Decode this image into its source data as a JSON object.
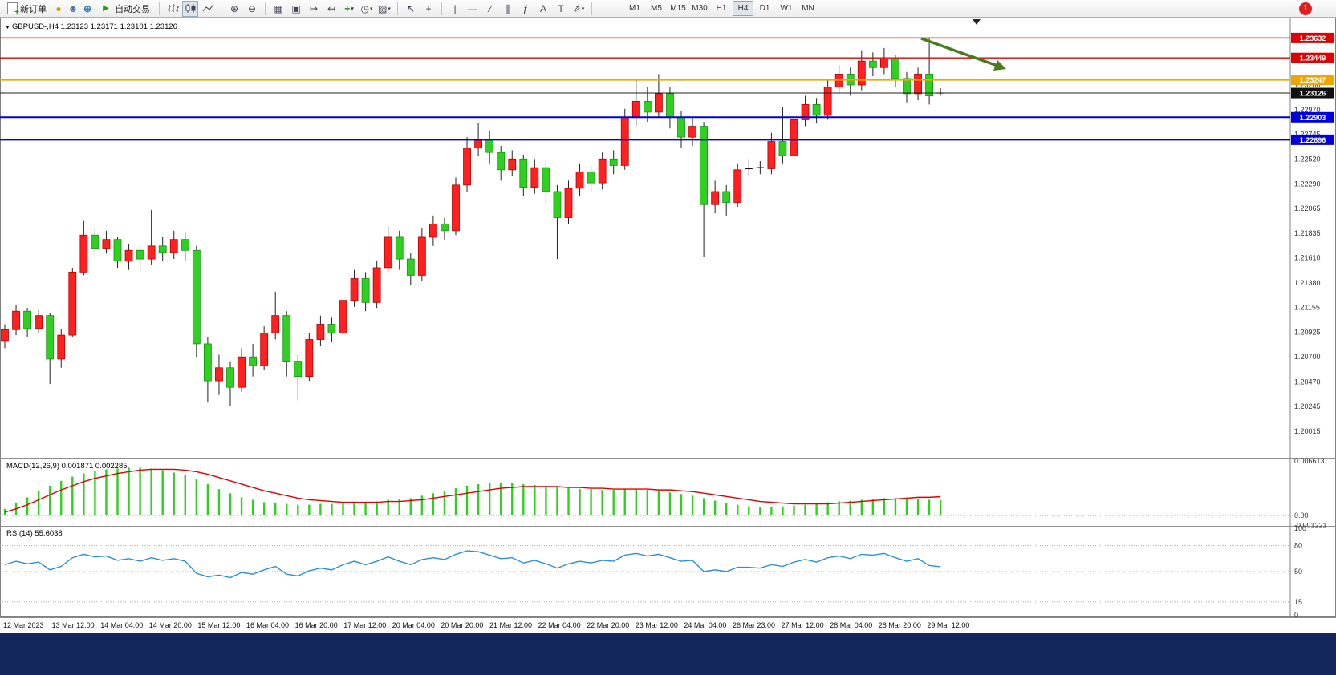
{
  "toolbar": {
    "new_order_label": "新订单",
    "autotrading_label": "自动交易",
    "tool_text": "A",
    "tool_label": "T",
    "timeframes": [
      "M1",
      "M5",
      "M15",
      "M30",
      "H1",
      "H4",
      "D1",
      "W1",
      "MN"
    ],
    "active_timeframe": "H4",
    "notification_count": "1",
    "icons": [
      "new-order-icon",
      "coin-icon",
      "profile-icon",
      "globe-icon",
      "autotrading-icon",
      "bar-chart-icon",
      "candlestick-icon",
      "line-chart-icon",
      "zoom-in-icon",
      "zoom-out-icon",
      "tile-windows-icon",
      "cascade-windows-icon",
      "auto-scroll-icon",
      "chart-shift-icon",
      "indicators-icon",
      "periods-icon",
      "template-icon",
      "cursor-icon",
      "crosshair-icon",
      "vertical-line-icon",
      "horizontal-line-icon",
      "trendline-icon",
      "channel-icon",
      "fibonacci-icon",
      "text-icon",
      "label-icon",
      "arrows-icon",
      "notification-badge"
    ]
  },
  "chart": {
    "title": "GBPUSD-,H4 1.23123 1.23171 1.23101 1.23126",
    "symbol": "GBPUSD-",
    "period": "H4",
    "open": "1.23123",
    "high": "1.23171",
    "low": "1.23101",
    "close": "1.23126",
    "current_price": "1.23126",
    "levels": [
      {
        "price": 1.23632,
        "label": "1.23632",
        "color": "#e30000",
        "width": 1.4
      },
      {
        "price": 1.23449,
        "label": "1.23449",
        "color": "#e30000",
        "width": 1.4
      },
      {
        "price": 1.23247,
        "label": "1.23247",
        "color": "#f0a500",
        "width": 2
      },
      {
        "price": 1.22903,
        "label": "1.22903",
        "color": "#0000dd",
        "width": 2
      },
      {
        "price": 1.22696,
        "label": "1.22696",
        "color": "#0000dd",
        "width": 2
      }
    ],
    "y_axis": [
      "1.23200",
      "1.22970",
      "1.22745",
      "1.22520",
      "1.22290",
      "1.22065",
      "1.21835",
      "1.21610",
      "1.21380",
      "1.21155",
      "1.20925",
      "1.20700",
      "1.20470",
      "1.20245",
      "1.20015"
    ],
    "x_axis": [
      "12 Mar 2023",
      "13 Mar 12:00",
      "14 Mar 04:00",
      "14 Mar 20:00",
      "15 Mar 12:00",
      "16 Mar 04:00",
      "16 Mar 20:00",
      "17 Mar 12:00",
      "20 Mar 04:00",
      "20 Mar 20:00",
      "21 Mar 12:00",
      "22 Mar 04:00",
      "22 Mar 20:00",
      "23 Mar 12:00",
      "24 Mar 04:00",
      "26 Mar 23:00",
      "27 Mar 12:00",
      "28 Mar 04:00",
      "28 Mar 20:00",
      "29 Mar 12:00"
    ],
    "annotation": {
      "type": "trend-arrow",
      "direction": "down-right",
      "color": "#4a7c1f"
    }
  },
  "macd": {
    "label": "MACD(12,26,9) 0.001871 0.002285",
    "axis": [
      "0.006613",
      "0.00",
      "-0.001221"
    ]
  },
  "rsi": {
    "label": "RSI(14) 55.6038",
    "axis": [
      "100",
      "80",
      "50",
      "15",
      "0"
    ],
    "levels": [
      80,
      50,
      15
    ]
  },
  "colors": {
    "bull": "#ff2020",
    "bear": "#30d020",
    "wick": "#222222",
    "macd_hist": "#30d020",
    "macd_signal": "#e00000",
    "rsi_line": "#2a8fdd"
  },
  "chart_data": {
    "type": "candlestick",
    "symbol": "GBPUSD-",
    "timeframe": "H4",
    "candles": [
      [
        1.2085,
        1.21,
        1.2078,
        1.2095
      ],
      [
        1.2095,
        1.2118,
        1.209,
        1.2112
      ],
      [
        1.2112,
        1.2115,
        1.2088,
        1.2096
      ],
      [
        1.2096,
        1.2113,
        1.2092,
        1.2108
      ],
      [
        1.2108,
        1.211,
        1.2045,
        1.2068
      ],
      [
        1.2068,
        1.2096,
        1.206,
        1.209
      ],
      [
        1.209,
        1.2152,
        1.2088,
        1.2148
      ],
      [
        1.2148,
        1.2195,
        1.2145,
        1.2182
      ],
      [
        1.2182,
        1.2188,
        1.2162,
        1.217
      ],
      [
        1.217,
        1.2186,
        1.2165,
        1.2178
      ],
      [
        1.2178,
        1.218,
        1.2152,
        1.2158
      ],
      [
        1.2158,
        1.2174,
        1.215,
        1.2168
      ],
      [
        1.2168,
        1.2172,
        1.2148,
        1.216
      ],
      [
        1.216,
        1.2205,
        1.2155,
        1.2172
      ],
      [
        1.2172,
        1.218,
        1.2158,
        1.2166
      ],
      [
        1.2166,
        1.2186,
        1.216,
        1.2178
      ],
      [
        1.2178,
        1.2184,
        1.2158,
        1.2168
      ],
      [
        1.2168,
        1.2172,
        1.207,
        1.2082
      ],
      [
        1.2082,
        1.2088,
        1.2028,
        1.2048
      ],
      [
        1.2048,
        1.2072,
        1.2035,
        1.206
      ],
      [
        1.206,
        1.2066,
        1.2025,
        1.2042
      ],
      [
        1.2042,
        1.2078,
        1.2038,
        1.207
      ],
      [
        1.207,
        1.2082,
        1.2052,
        1.2062
      ],
      [
        1.2062,
        1.2098,
        1.2058,
        1.2092
      ],
      [
        1.2092,
        1.213,
        1.2086,
        1.2108
      ],
      [
        1.2108,
        1.2112,
        1.2052,
        1.2066
      ],
      [
        1.2066,
        1.2072,
        1.203,
        1.2052
      ],
      [
        1.2052,
        1.2092,
        1.2048,
        1.2086
      ],
      [
        1.2086,
        1.2108,
        1.208,
        1.21
      ],
      [
        1.21,
        1.2106,
        1.2084,
        1.2092
      ],
      [
        1.2092,
        1.2128,
        1.2088,
        1.2122
      ],
      [
        1.2122,
        1.215,
        1.2116,
        1.2142
      ],
      [
        1.2142,
        1.2148,
        1.2112,
        1.212
      ],
      [
        1.212,
        1.2158,
        1.2115,
        1.2152
      ],
      [
        1.2152,
        1.219,
        1.2148,
        1.218
      ],
      [
        1.218,
        1.2186,
        1.215,
        1.216
      ],
      [
        1.216,
        1.2166,
        1.2136,
        1.2145
      ],
      [
        1.2145,
        1.2188,
        1.214,
        1.218
      ],
      [
        1.218,
        1.22,
        1.2172,
        1.2192
      ],
      [
        1.2192,
        1.2198,
        1.2178,
        1.2186
      ],
      [
        1.2186,
        1.2235,
        1.2182,
        1.2228
      ],
      [
        1.2228,
        1.2272,
        1.2222,
        1.2262
      ],
      [
        1.2262,
        1.2285,
        1.2255,
        1.227
      ],
      [
        1.227,
        1.2278,
        1.2248,
        1.2258
      ],
      [
        1.2258,
        1.2264,
        1.2232,
        1.2242
      ],
      [
        1.2242,
        1.226,
        1.2236,
        1.2252
      ],
      [
        1.2252,
        1.2256,
        1.2218,
        1.2226
      ],
      [
        1.2226,
        1.2252,
        1.222,
        1.2244
      ],
      [
        1.2244,
        1.225,
        1.221,
        1.2222
      ],
      [
        1.2222,
        1.2228,
        1.216,
        1.2198
      ],
      [
        1.2198,
        1.2232,
        1.2192,
        1.2225
      ],
      [
        1.2225,
        1.2248,
        1.2218,
        1.224
      ],
      [
        1.224,
        1.2246,
        1.2222,
        1.223
      ],
      [
        1.223,
        1.2258,
        1.2224,
        1.2252
      ],
      [
        1.2252,
        1.226,
        1.2238,
        1.2246
      ],
      [
        1.2246,
        1.2298,
        1.2242,
        1.229
      ],
      [
        1.229,
        1.2325,
        1.2282,
        1.2305
      ],
      [
        1.2305,
        1.2318,
        1.2286,
        1.2295
      ],
      [
        1.2295,
        1.233,
        1.229,
        1.2312
      ],
      [
        1.2312,
        1.2318,
        1.228,
        1.229
      ],
      [
        1.229,
        1.2296,
        1.2262,
        1.2272
      ],
      [
        1.2272,
        1.229,
        1.2264,
        1.2282
      ],
      [
        1.2282,
        1.2286,
        1.2162,
        1.221
      ],
      [
        1.221,
        1.2232,
        1.2202,
        1.2222
      ],
      [
        1.2222,
        1.2228,
        1.22,
        1.2212
      ],
      [
        1.2212,
        1.2248,
        1.2208,
        1.2242
      ],
      [
        1.2242,
        1.2252,
        1.2236,
        1.2243
      ],
      [
        1.2245,
        1.225,
        1.2238,
        1.2244
      ],
      [
        1.2243,
        1.2276,
        1.2238,
        1.2268
      ],
      [
        1.2268,
        1.23,
        1.2248,
        1.2255
      ],
      [
        1.2255,
        1.2295,
        1.225,
        1.2288
      ],
      [
        1.2288,
        1.231,
        1.2282,
        1.2302
      ],
      [
        1.2302,
        1.2308,
        1.2285,
        1.2292
      ],
      [
        1.2292,
        1.2326,
        1.2288,
        1.2318
      ],
      [
        1.2318,
        1.2338,
        1.2312,
        1.233
      ],
      [
        1.233,
        1.2336,
        1.231,
        1.232
      ],
      [
        1.232,
        1.2352,
        1.2315,
        1.2342
      ],
      [
        1.2342,
        1.235,
        1.2328,
        1.2336
      ],
      [
        1.2336,
        1.2354,
        1.233,
        1.2344
      ],
      [
        1.2344,
        1.2348,
        1.2318,
        1.2326
      ],
      [
        1.2326,
        1.2332,
        1.2304,
        1.2312
      ],
      [
        1.2312,
        1.2336,
        1.2306,
        1.233
      ],
      [
        1.233,
        1.23632,
        1.2302,
        1.231
      ],
      [
        1.23123,
        1.23171,
        1.23101,
        1.23126
      ]
    ],
    "macd_histogram": [
      0.0008,
      0.0015,
      0.0022,
      0.003,
      0.0036,
      0.0042,
      0.0047,
      0.0051,
      0.0054,
      0.0056,
      0.0057,
      0.0058,
      0.0058,
      0.0057,
      0.0055,
      0.0052,
      0.0049,
      0.0044,
      0.0038,
      0.0032,
      0.0027,
      0.0022,
      0.0019,
      0.0016,
      0.0015,
      0.0014,
      0.0013,
      0.0013,
      0.0014,
      0.0014,
      0.0015,
      0.0016,
      0.0016,
      0.0017,
      0.0019,
      0.002,
      0.0021,
      0.0024,
      0.0027,
      0.003,
      0.0033,
      0.0036,
      0.0038,
      0.004,
      0.004,
      0.0039,
      0.0038,
      0.0037,
      0.0036,
      0.0034,
      0.0033,
      0.0032,
      0.0032,
      0.0031,
      0.0031,
      0.0032,
      0.0032,
      0.0031,
      0.003,
      0.0028,
      0.0026,
      0.0024,
      0.0021,
      0.0018,
      0.0015,
      0.0013,
      0.0011,
      0.001,
      0.001,
      0.0011,
      0.0012,
      0.0013,
      0.0014,
      0.0016,
      0.0017,
      0.0018,
      0.0019,
      0.002,
      0.0021,
      0.0021,
      0.0021,
      0.002,
      0.0019,
      0.001871
    ],
    "macd_signal": [
      0.0004,
      0.0008,
      0.0013,
      0.0019,
      0.0025,
      0.0031,
      0.0036,
      0.0041,
      0.0045,
      0.0048,
      0.0051,
      0.0053,
      0.0055,
      0.0056,
      0.0056,
      0.0056,
      0.0055,
      0.0053,
      0.005,
      0.0046,
      0.0042,
      0.0038,
      0.0034,
      0.003,
      0.0027,
      0.0024,
      0.0021,
      0.0019,
      0.0018,
      0.0017,
      0.0016,
      0.0016,
      0.0016,
      0.0016,
      0.0017,
      0.0017,
      0.0018,
      0.0019,
      0.0021,
      0.0023,
      0.0025,
      0.0027,
      0.0029,
      0.0031,
      0.0033,
      0.0034,
      0.0035,
      0.0035,
      0.0035,
      0.0035,
      0.0034,
      0.0034,
      0.0033,
      0.0033,
      0.0032,
      0.0032,
      0.0032,
      0.0032,
      0.0031,
      0.0031,
      0.003,
      0.0029,
      0.0027,
      0.0025,
      0.0023,
      0.0021,
      0.0019,
      0.0017,
      0.0016,
      0.0015,
      0.0014,
      0.0014,
      0.0014,
      0.0014,
      0.0015,
      0.0016,
      0.0017,
      0.0018,
      0.0019,
      0.002,
      0.0021,
      0.0022,
      0.0022,
      0.002285
    ],
    "rsi": [
      58,
      62,
      59,
      61,
      52,
      56,
      66,
      70,
      67,
      68,
      63,
      65,
      62,
      66,
      63,
      65,
      62,
      48,
      44,
      46,
      43,
      49,
      47,
      52,
      56,
      47,
      45,
      51,
      54,
      52,
      58,
      62,
      58,
      62,
      67,
      62,
      58,
      64,
      66,
      64,
      70,
      74,
      73,
      69,
      65,
      66,
      60,
      63,
      59,
      54,
      59,
      62,
      60,
      63,
      62,
      69,
      71,
      68,
      70,
      66,
      62,
      63,
      50,
      52,
      50,
      55,
      55,
      54,
      58,
      56,
      61,
      64,
      61,
      66,
      68,
      65,
      70,
      69,
      71,
      66,
      62,
      65,
      57,
      55.6
    ]
  }
}
